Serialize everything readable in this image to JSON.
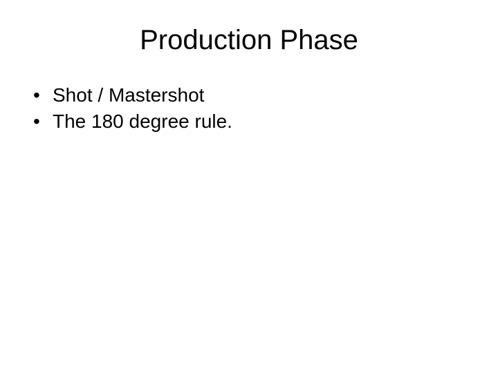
{
  "slide": {
    "title": "Production Phase",
    "title_fontsize": 40,
    "title_color": "#000000",
    "bullets": [
      {
        "text": "Shot / Mastershot"
      },
      {
        "text": "The 180 degree rule."
      }
    ],
    "bullet_fontsize": 28,
    "bullet_color": "#000000",
    "background_color": "#ffffff",
    "font_family": "Arial"
  }
}
